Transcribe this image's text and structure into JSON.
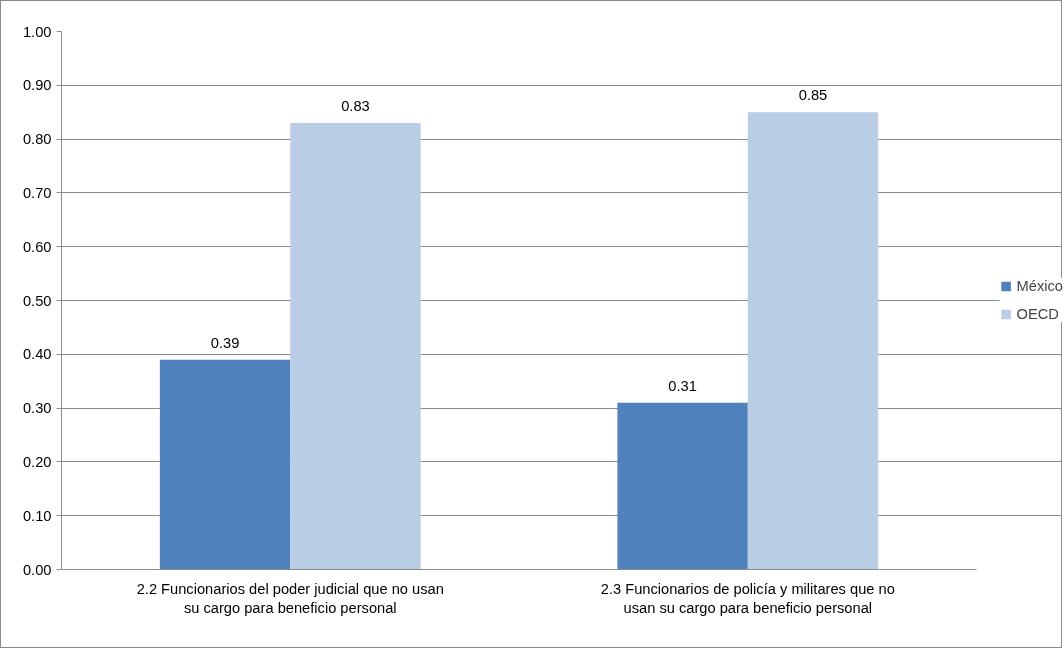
{
  "chart_data": {
    "type": "bar",
    "categories": [
      "2.2 Funcionarios del poder judicial que no usan su cargo para beneficio personal",
      "2.3 Funcionarios de policía y militares que no usan su cargo para beneficio personal"
    ],
    "series": [
      {
        "name": "México",
        "color": "#4f81bd",
        "values": [
          0.39,
          0.31
        ]
      },
      {
        "name": "OECD",
        "color": "#b9cde5",
        "values": [
          0.83,
          0.85
        ]
      }
    ],
    "ylim": [
      0,
      1
    ],
    "yticks": [
      {
        "value": 0,
        "label": "0.00"
      },
      {
        "value": 0.1,
        "label": "0.10"
      },
      {
        "value": 0.2,
        "label": "0.20"
      },
      {
        "value": 0.3,
        "label": "0.30"
      },
      {
        "value": 0.4,
        "label": "0.40"
      },
      {
        "value": 0.5,
        "label": "0.50"
      },
      {
        "value": 0.6,
        "label": "0.60"
      },
      {
        "value": 0.7,
        "label": "0.70"
      },
      {
        "value": 0.8,
        "label": "0.80"
      },
      {
        "value": 0.9,
        "label": "0.90"
      },
      {
        "value": 1,
        "label": "1.00"
      }
    ],
    "grid": "y",
    "legend": "right",
    "data_labels": true
  }
}
